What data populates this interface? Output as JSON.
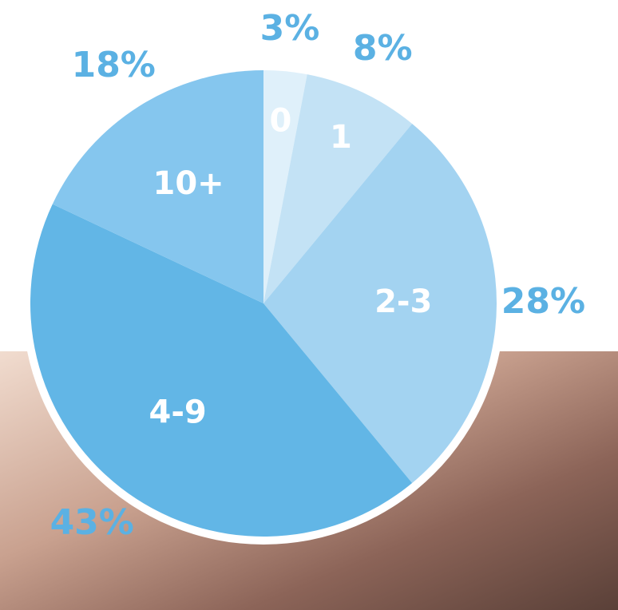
{
  "chart_data": {
    "type": "pie",
    "categories": [
      "0",
      "1",
      "2-3",
      "4-9",
      "10+"
    ],
    "values": [
      3,
      8,
      28,
      43,
      18
    ],
    "value_labels": [
      "3%",
      "8%",
      "28%",
      "43%",
      "18%"
    ],
    "colors": [
      "#dff0fa",
      "#c3e2f5",
      "#a3d3f1",
      "#62b6e6",
      "#85c6ee"
    ]
  }
}
